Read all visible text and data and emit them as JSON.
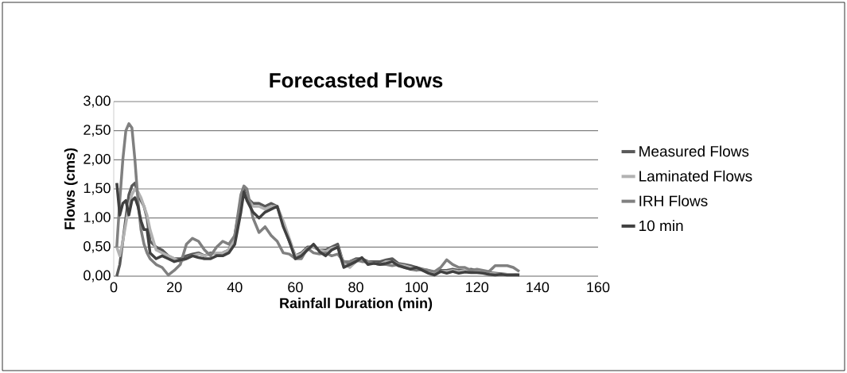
{
  "chart_data": {
    "type": "line",
    "title": "Forecasted Flows",
    "xlabel": "Rainfall Duration (min)",
    "ylabel": "Flows (cms)",
    "x": [
      1,
      2,
      3,
      4,
      5,
      6,
      7,
      8,
      9,
      10,
      11,
      12,
      14,
      16,
      18,
      20,
      22,
      24,
      26,
      28,
      30,
      32,
      34,
      36,
      38,
      40,
      42,
      43,
      44,
      46,
      48,
      50,
      52,
      54,
      56,
      58,
      60,
      62,
      64,
      66,
      68,
      70,
      72,
      74,
      76,
      78,
      80,
      82,
      84,
      86,
      88,
      90,
      92,
      94,
      96,
      98,
      100,
      102,
      104,
      106,
      108,
      110,
      112,
      114,
      116,
      118,
      120,
      122,
      124,
      126,
      128,
      130,
      132,
      134
    ],
    "series": [
      {
        "name": "Measured Flows",
        "color": "#595959",
        "values": [
          0,
          0.2,
          0.6,
          1.0,
          1.4,
          1.55,
          1.6,
          1.4,
          1.3,
          1.2,
          1.0,
          0.6,
          0.5,
          0.45,
          0.35,
          0.3,
          0.3,
          0.35,
          0.38,
          0.4,
          0.35,
          0.4,
          0.38,
          0.4,
          0.45,
          0.7,
          1.3,
          1.5,
          1.35,
          1.25,
          1.25,
          1.2,
          1.25,
          1.2,
          0.9,
          0.6,
          0.35,
          0.4,
          0.5,
          0.5,
          0.45,
          0.45,
          0.5,
          0.55,
          0.2,
          0.25,
          0.3,
          0.3,
          0.25,
          0.25,
          0.25,
          0.28,
          0.3,
          0.22,
          0.2,
          0.18,
          0.15,
          0.12,
          0.1,
          0.05,
          0.1,
          0.1,
          0.12,
          0.1,
          0.1,
          0.12,
          0.1,
          0.08,
          0.06,
          0.05,
          0.04,
          0.03,
          0.03,
          0.02
        ]
      },
      {
        "name": "Laminated Flows",
        "color": "#b2b2b2",
        "values": [
          0.5,
          0.35,
          0.6,
          0.9,
          1.2,
          1.4,
          1.5,
          1.45,
          1.35,
          1.2,
          1.05,
          0.8,
          0.45,
          0.4,
          0.35,
          0.3,
          0.25,
          0.3,
          0.35,
          0.38,
          0.35,
          0.38,
          0.4,
          0.4,
          0.45,
          0.65,
          1.2,
          1.45,
          1.35,
          1.2,
          1.2,
          1.15,
          1.2,
          1.2,
          0.95,
          0.65,
          0.35,
          0.38,
          0.48,
          0.5,
          0.45,
          0.42,
          0.48,
          0.5,
          0.22,
          0.15,
          0.25,
          0.28,
          0.22,
          0.22,
          0.2,
          0.25,
          0.25,
          0.2,
          0.18,
          0.15,
          0.12,
          0.1,
          0.08,
          0.05,
          0.08,
          0.08,
          0.1,
          0.08,
          0.1,
          0.1,
          0.08,
          0.07,
          0.05,
          0.04,
          0.03,
          0.03,
          0.03,
          0.02
        ]
      },
      {
        "name": "IRH Flows",
        "color": "#808080",
        "values": [
          0.5,
          1.3,
          2.0,
          2.5,
          2.62,
          2.55,
          2.0,
          1.3,
          0.8,
          0.55,
          0.4,
          0.3,
          0.2,
          0.15,
          0.02,
          0.1,
          0.2,
          0.55,
          0.65,
          0.6,
          0.45,
          0.35,
          0.5,
          0.6,
          0.55,
          0.7,
          1.4,
          1.55,
          1.5,
          1.0,
          0.75,
          0.85,
          0.7,
          0.6,
          0.4,
          0.38,
          0.3,
          0.3,
          0.48,
          0.4,
          0.38,
          0.4,
          0.35,
          0.38,
          0.25,
          0.25,
          0.28,
          0.25,
          0.25,
          0.22,
          0.2,
          0.2,
          0.18,
          0.2,
          0.15,
          0.12,
          0.1,
          0.12,
          0.1,
          0.08,
          0.15,
          0.28,
          0.2,
          0.15,
          0.15,
          0.1,
          0.12,
          0.1,
          0.08,
          0.18,
          0.18,
          0.18,
          0.15,
          0.08
        ]
      },
      {
        "name": "10 min",
        "color": "#404040",
        "values": [
          1.6,
          1.05,
          1.25,
          1.3,
          1.05,
          1.3,
          1.35,
          1.2,
          0.95,
          0.8,
          0.8,
          0.4,
          0.3,
          0.35,
          0.3,
          0.25,
          0.28,
          0.3,
          0.35,
          0.32,
          0.3,
          0.3,
          0.35,
          0.35,
          0.4,
          0.55,
          1.1,
          1.45,
          1.3,
          1.1,
          1.0,
          1.1,
          1.15,
          1.2,
          0.85,
          0.6,
          0.3,
          0.35,
          0.45,
          0.55,
          0.42,
          0.35,
          0.45,
          0.5,
          0.15,
          0.2,
          0.25,
          0.32,
          0.2,
          0.22,
          0.2,
          0.22,
          0.25,
          0.18,
          0.15,
          0.12,
          0.15,
          0.1,
          0.05,
          0.02,
          0.08,
          0.05,
          0.08,
          0.05,
          0.07,
          0.06,
          0.06,
          0.05,
          0.03,
          0.02,
          0.03,
          0.02,
          0.02,
          0.02
        ]
      }
    ],
    "xlim": [
      0,
      160
    ],
    "xticks": [
      0,
      20,
      40,
      60,
      80,
      100,
      120,
      140,
      160
    ],
    "ylim": [
      0,
      3
    ],
    "yticks": [
      {
        "value": 0,
        "label": "0,00"
      },
      {
        "value": 0.5,
        "label": "0,50"
      },
      {
        "value": 1,
        "label": "1,00"
      },
      {
        "value": 1.5,
        "label": "1,50"
      },
      {
        "value": 2,
        "label": "2,00"
      },
      {
        "value": 2.5,
        "label": "2,50"
      },
      {
        "value": 3,
        "label": "3,00"
      }
    ],
    "grid": "y",
    "legend": "right",
    "marker": "none",
    "line_style": "solid"
  }
}
